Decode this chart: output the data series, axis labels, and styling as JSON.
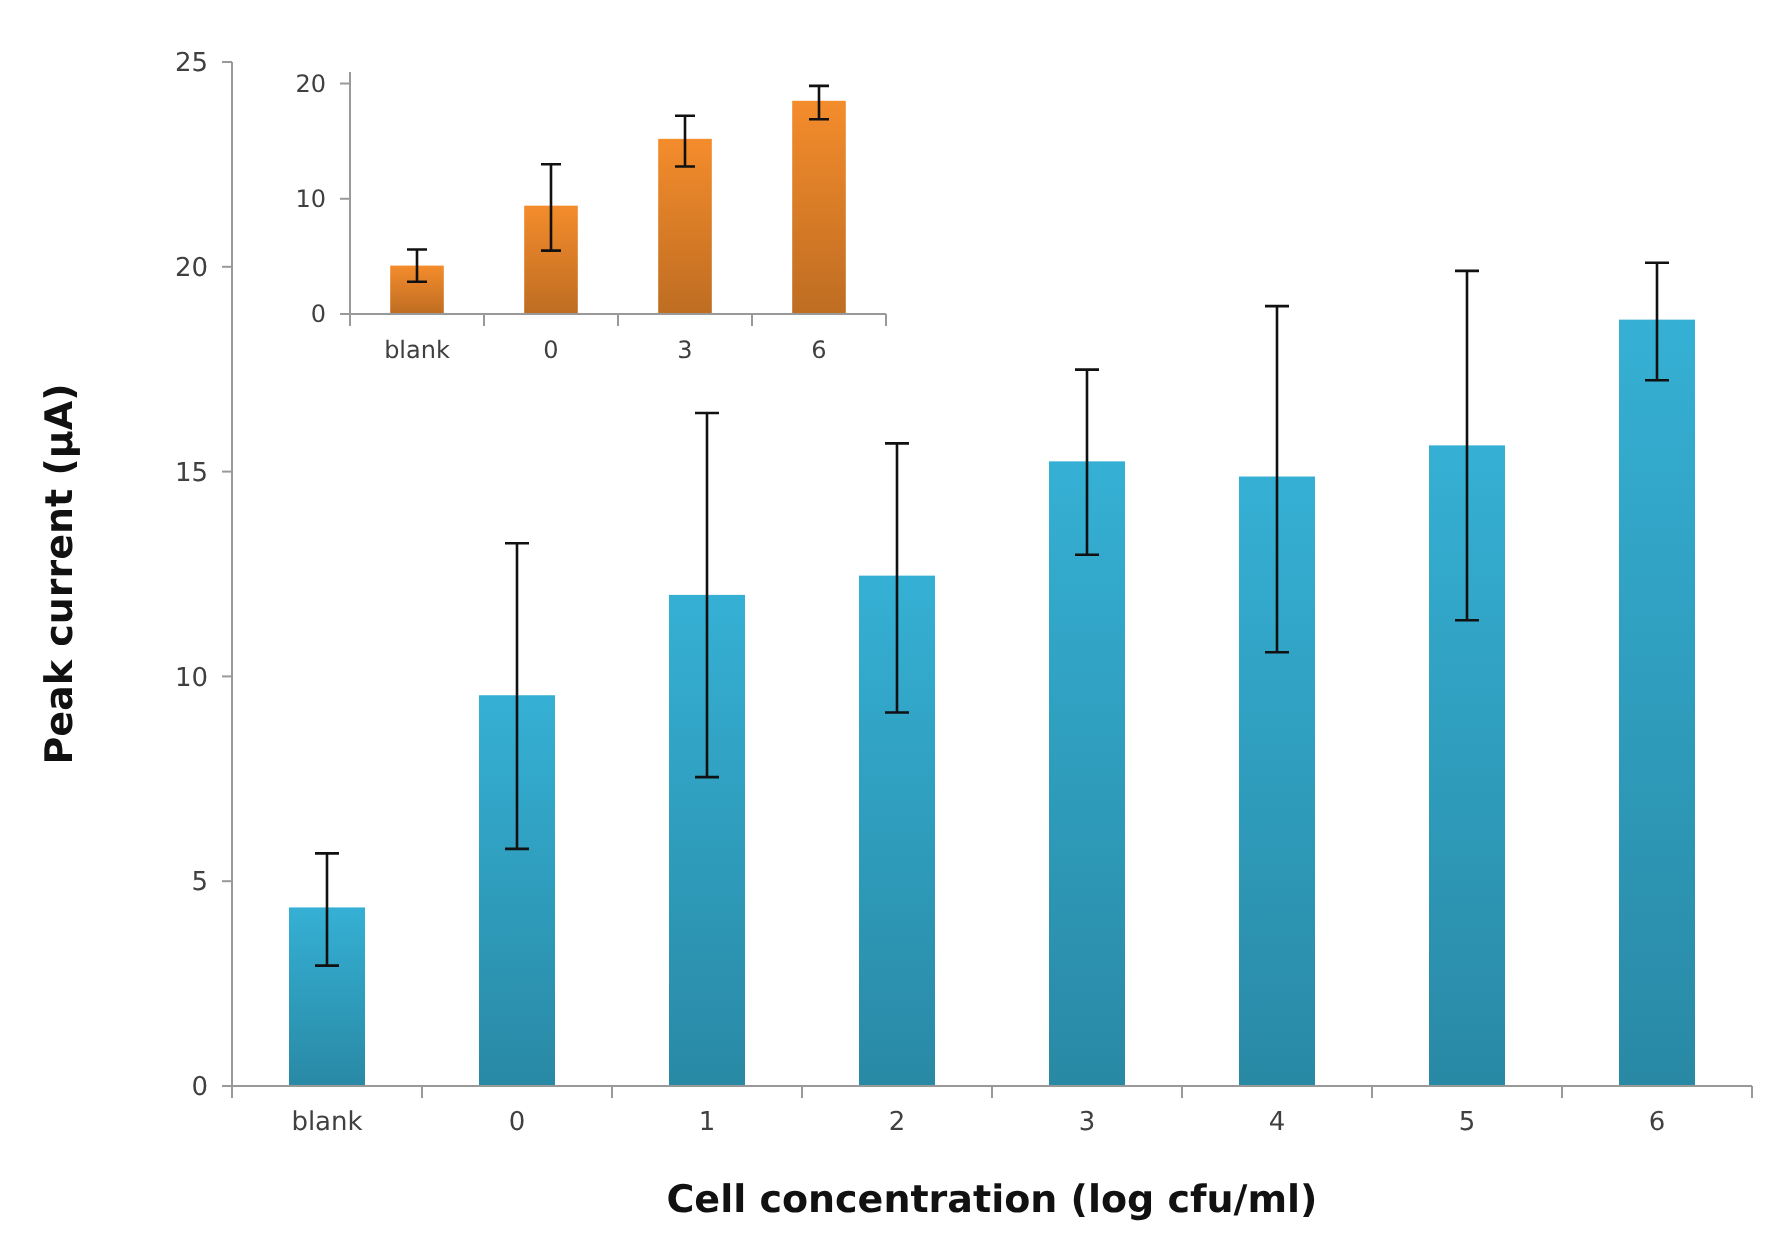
{
  "chart_data": [
    {
      "type": "bar",
      "xlabel": "Cell concentration (log cfu/ml)",
      "ylabel": "Peak current (µA)",
      "categories": [
        "blank",
        "0",
        "1",
        "2",
        "3",
        "4",
        "5",
        "6"
      ],
      "series": [
        {
          "color": "#35b0d4",
          "values": [
            4.36,
            9.54,
            11.99,
            12.46,
            15.25,
            14.88,
            15.64,
            18.71
          ],
          "errors": [
            [
              2.94,
              5.68
            ],
            [
              5.79,
              13.25
            ],
            [
              7.54,
              16.43
            ],
            [
              9.12,
              15.69
            ],
            [
              12.97,
              17.49
            ],
            [
              10.59,
              19.04
            ],
            [
              11.37,
              19.9
            ],
            [
              17.23,
              20.1
            ]
          ]
        }
      ],
      "ylim": [
        0,
        25
      ],
      "yticks": [
        0,
        5,
        10,
        15,
        20,
        25
      ]
    },
    {
      "type": "bar",
      "categories": [
        "blank",
        "0",
        "3",
        "6"
      ],
      "series": [
        {
          "color": "#f48c2c",
          "values": [
            4.2,
            9.4,
            15.2,
            18.5
          ],
          "errors": [
            [
              2.8,
              5.6
            ],
            [
              5.5,
              13
            ],
            [
              12.8,
              17.2
            ],
            [
              16.9,
              19.8
            ]
          ]
        }
      ],
      "ylim": [
        0,
        21
      ],
      "yticks": [
        0,
        10,
        20
      ]
    }
  ]
}
